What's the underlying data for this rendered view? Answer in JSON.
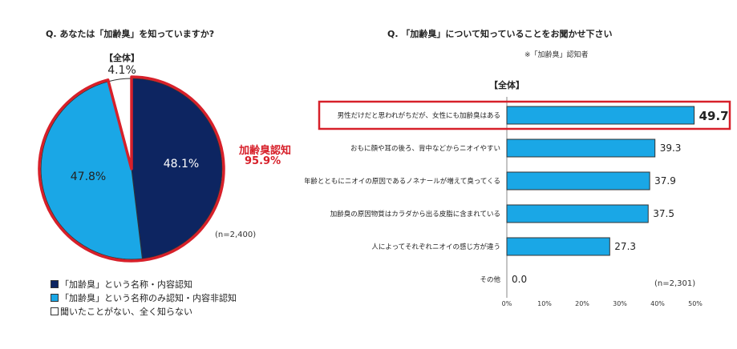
{
  "colors": {
    "dark_navy": "#0d2561",
    "light_blue": "#1aa7e6",
    "white": "#ffffff",
    "highlight_red": "#d7202a"
  },
  "left": {
    "question": "Q. あなたは「加齢臭」を知っていますか?",
    "section_label": "【全体】",
    "n_label": "(n=2,400)",
    "callout_line1": "加齢臭認知",
    "callout_line2": "95.9%",
    "legend": [
      {
        "label": "「加齢臭」という名称・内容認知",
        "color": "#0d2561"
      },
      {
        "label": "「加齢臭」という名称のみ認知・内容非認知",
        "color": "#1aa7e6"
      },
      {
        "label": "聞いたことがない、全く知らない",
        "color": "#ffffff"
      }
    ]
  },
  "right": {
    "question": "Q. 「加齢臭」について知っていることをお聞かせ下さい",
    "note": "※「加齢臭」認知者",
    "section_label": "【全体】",
    "n_label": "(n=2,301)"
  },
  "chart_data": [
    {
      "type": "pie",
      "categories": [
        "「加齢臭」という名称・内容認知",
        "「加齢臭」という名称のみ認知・内容非認知",
        "聞いたことがない、全く知らない"
      ],
      "values": [
        48.1,
        47.8,
        4.1
      ],
      "value_labels": [
        "48.1%",
        "47.8%",
        "4.1%"
      ],
      "colors": [
        "#0d2561",
        "#1aa7e6",
        "#ffffff"
      ]
    },
    {
      "type": "bar",
      "orientation": "horizontal",
      "categories": [
        "男性だけだと思われがちだが、女性にも加齢臭はある",
        "おもに顔や耳の後ろ、背中などからニオイやすい",
        "年齢とともにニオイの原因であるノネナールが増えて臭ってくる",
        "加齢臭の原因物質はカラダから出る皮脂に含まれている",
        "人によってそれぞれニオイの感じ方が違う",
        "その他"
      ],
      "values": [
        49.7,
        39.3,
        37.9,
        37.5,
        27.3,
        0.0
      ],
      "value_labels": [
        "49.7",
        "39.3",
        "37.9",
        "37.5",
        "27.3",
        "0.0"
      ],
      "highlighted_index": 0,
      "xlim": [
        0,
        50
      ],
      "xticks": [
        "0%",
        "10%",
        "20%",
        "30%",
        "40%",
        "50%"
      ],
      "xtick_values": [
        0,
        10,
        20,
        30,
        40,
        50
      ],
      "bar_color": "#1aa7e6"
    }
  ]
}
